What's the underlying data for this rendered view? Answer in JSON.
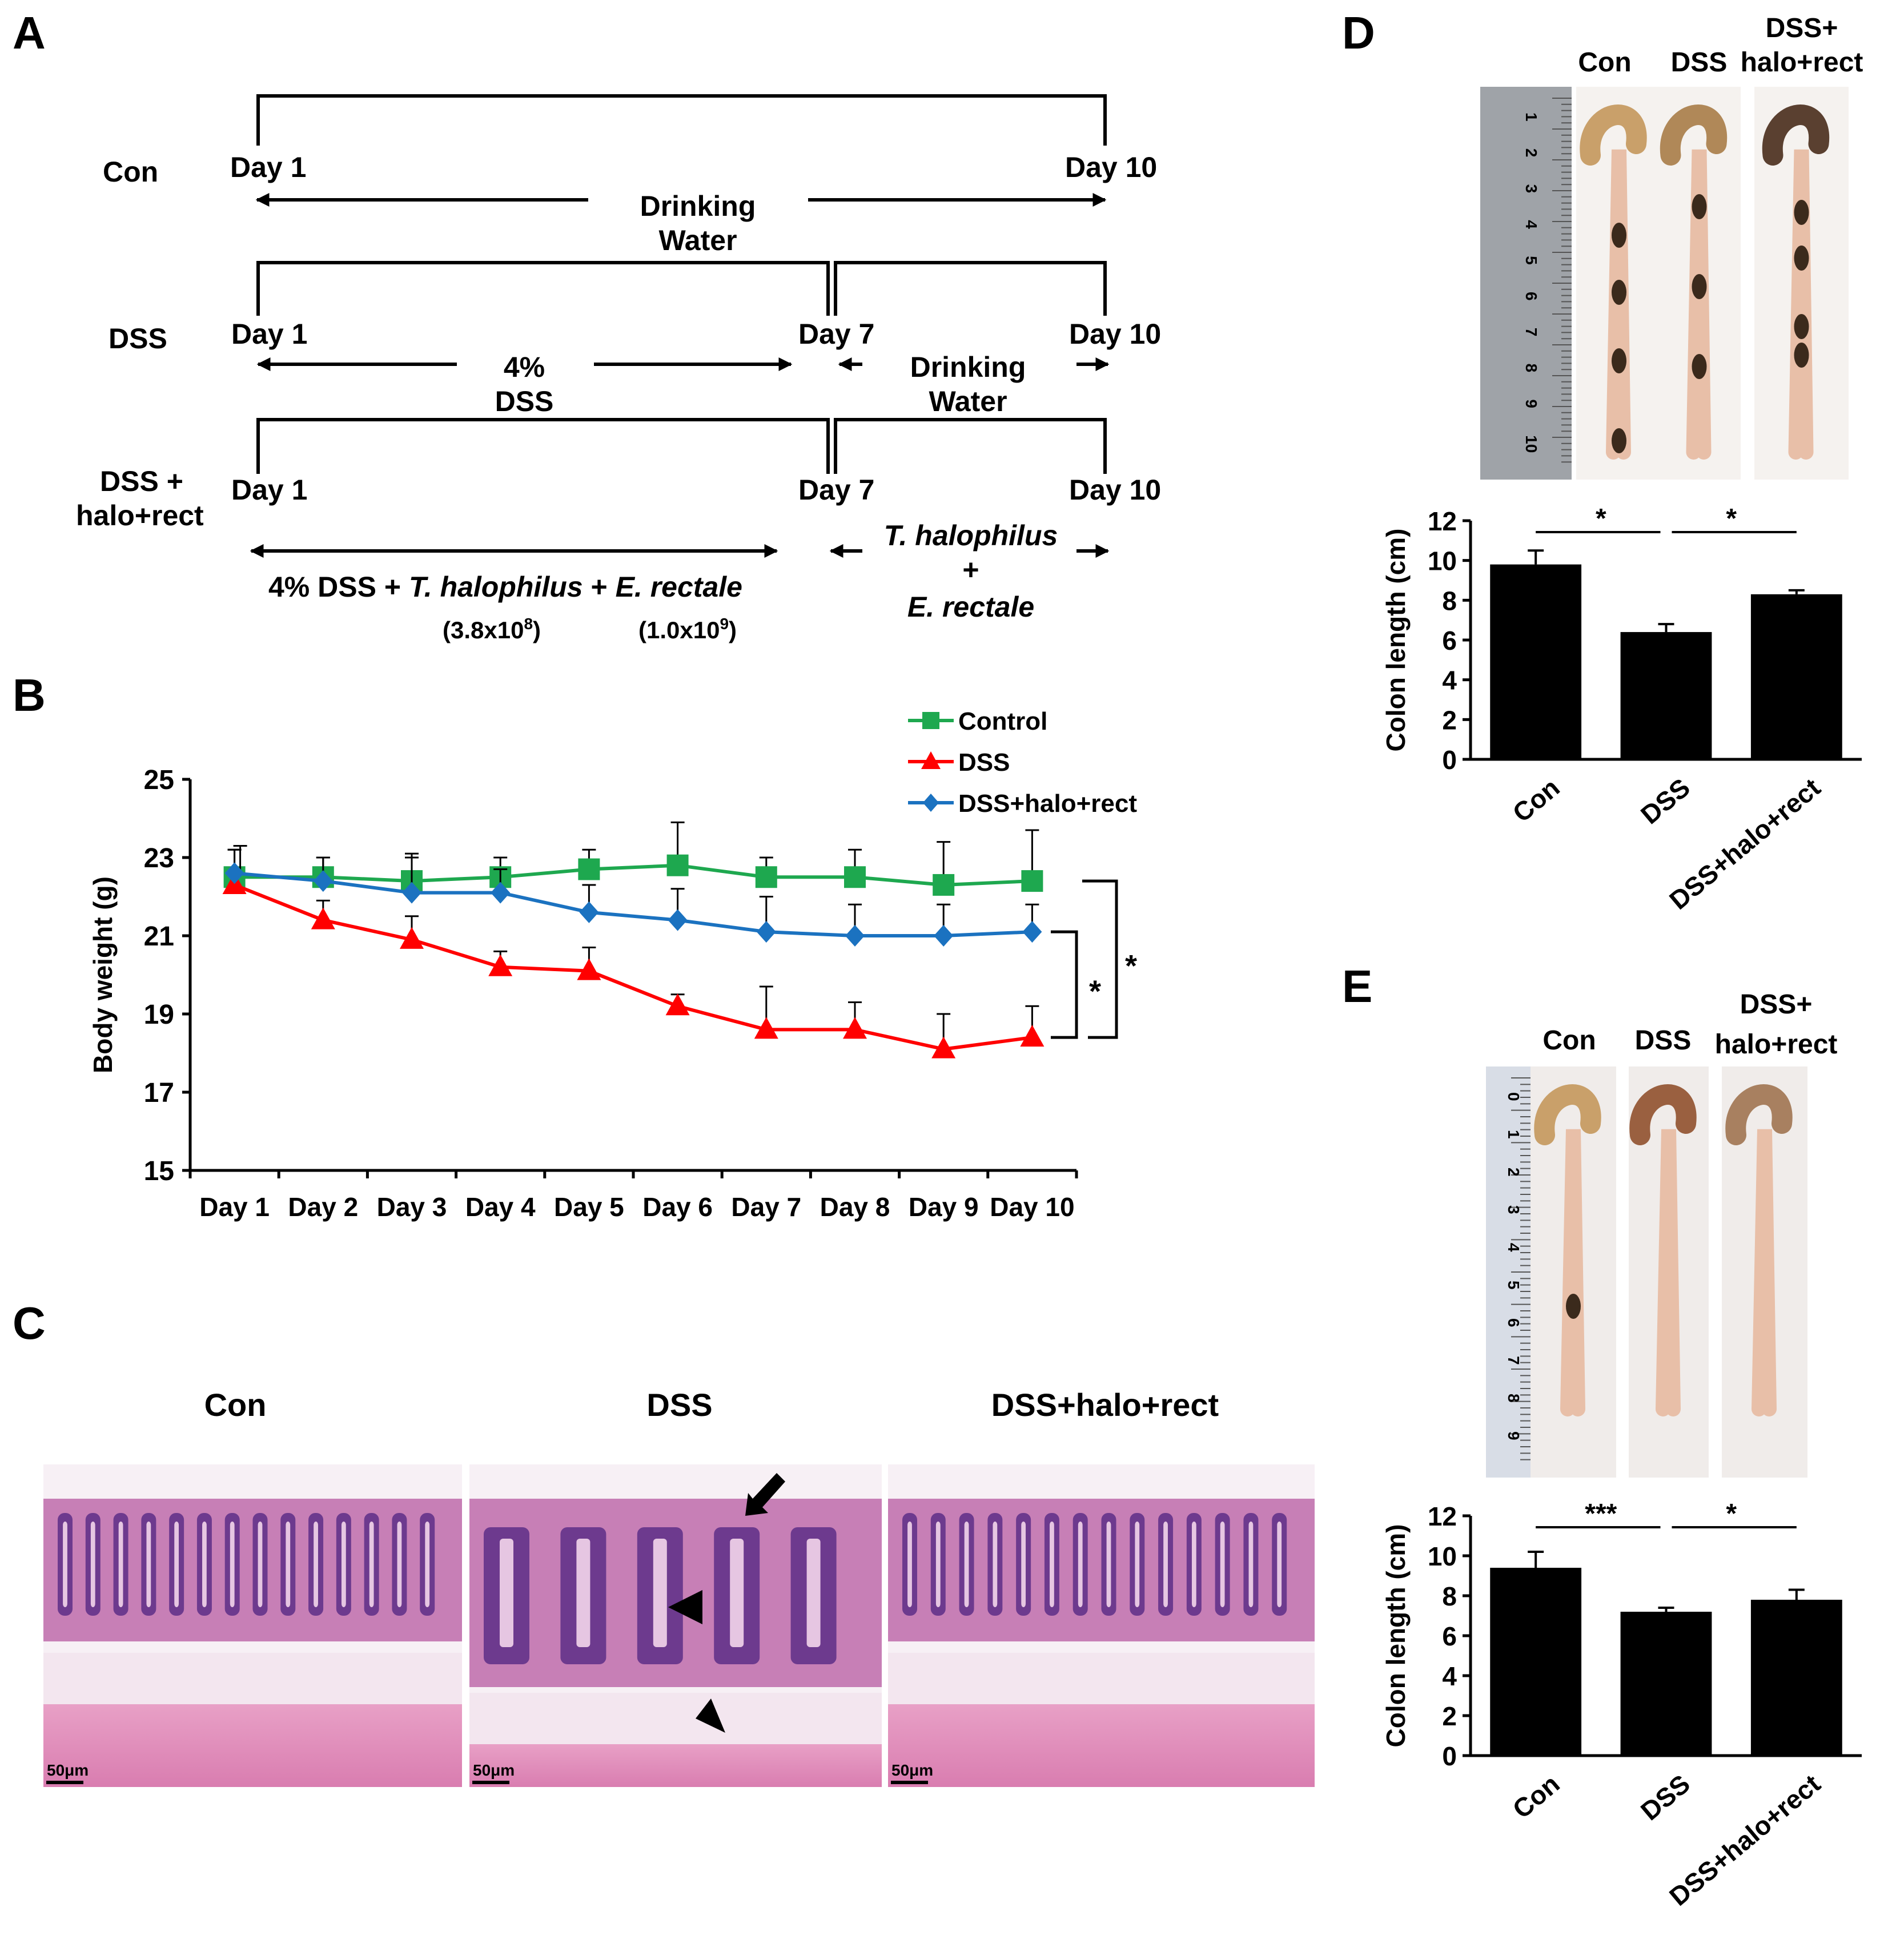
{
  "panel_labels": {
    "a": "A",
    "b": "B",
    "c": "C",
    "d": "D",
    "e": "E"
  },
  "schema": {
    "rows": [
      {
        "label": [
          "Con"
        ],
        "starts": [
          "Day 1"
        ],
        "ends": [
          "Day 10"
        ],
        "treatment": [
          "Drinking",
          "Water"
        ]
      },
      {
        "label": [
          "DSS"
        ],
        "starts": [
          "Day 1",
          "Day 7"
        ],
        "ends": [
          "Day 7",
          "Day 10"
        ],
        "treatment1": [
          "4%",
          "DSS"
        ],
        "treatment2": [
          "Drinking",
          "Water"
        ]
      },
      {
        "label": [
          "DSS +",
          "halo+rect"
        ],
        "starts": [
          "Day 1",
          "Day 7"
        ],
        "ends": [
          "Day 7",
          "Day 10"
        ]
      }
    ],
    "phase1": {
      "prefix": "4% DSS + ",
      "organism1": "T. halophilus",
      "plus": " + ",
      "organism2": "E. rectale",
      "dose1_base": "(3.8x10",
      "dose1_exp": "8",
      "dose1_close": ")",
      "dose2_base": "(1.0x10",
      "dose2_exp": "9",
      "dose2_close": ")"
    },
    "phase2": {
      "organism1": "T. halophilus",
      "plus": "+",
      "organism2": "E. rectale"
    }
  },
  "chart_data": [
    {
      "panel": "B",
      "type": "line",
      "xlabel": "",
      "ylabel": "Body weight (g)",
      "ylim": [
        15,
        25
      ],
      "yticks": [
        15,
        17,
        19,
        21,
        23,
        25
      ],
      "categories": [
        "Day 1",
        "Day 2",
        "Day 3",
        "Day 4",
        "Day 5",
        "Day 6",
        "Day 7",
        "Day 8",
        "Day 9",
        "Day 10"
      ],
      "legend_position": "top-right",
      "series": [
        {
          "name": "Control",
          "color": "#1ea84f",
          "marker": "square",
          "values": [
            22.5,
            22.5,
            22.4,
            22.5,
            22.7,
            22.8,
            22.5,
            22.5,
            22.3,
            22.4
          ],
          "error": [
            0.7,
            0.5,
            0.7,
            0.5,
            0.5,
            1.1,
            0.5,
            0.7,
            1.1,
            1.3
          ]
        },
        {
          "name": "DSS",
          "color": "#ff0000",
          "marker": "triangle",
          "values": [
            22.3,
            21.4,
            20.9,
            20.2,
            20.1,
            19.2,
            18.6,
            18.6,
            18.1,
            18.4
          ],
          "error": [
            0.9,
            0.5,
            0.6,
            0.4,
            0.6,
            0.3,
            1.1,
            0.7,
            0.9,
            0.8
          ]
        },
        {
          "name": "DSS+halo+rect",
          "color": "#1b72c0",
          "marker": "diamond",
          "values": [
            22.6,
            22.4,
            22.1,
            22.1,
            21.6,
            21.4,
            21.1,
            21.0,
            21.0,
            21.1
          ],
          "error": [
            0.7,
            0.6,
            0.9,
            0.6,
            0.7,
            0.8,
            0.9,
            0.8,
            0.8,
            0.7
          ]
        }
      ],
      "significance": [
        "*",
        "*"
      ]
    },
    {
      "panel": "D",
      "type": "bar",
      "ylabel": "Colon length (cm)",
      "ylim": [
        0,
        12
      ],
      "yticks": [
        0,
        2,
        4,
        6,
        8,
        10,
        12
      ],
      "categories": [
        "Con",
        "DSS",
        "DSS+halo+rect"
      ],
      "values": [
        9.8,
        6.4,
        8.3
      ],
      "error": [
        0.7,
        0.4,
        0.2
      ],
      "significance": [
        "*",
        "*"
      ]
    },
    {
      "panel": "E",
      "type": "bar",
      "ylabel": "Colon length (cm)",
      "ylim": [
        0,
        12
      ],
      "yticks": [
        0,
        2,
        4,
        6,
        8,
        10,
        12
      ],
      "categories": [
        "Con",
        "DSS",
        "DSS+halo+rect"
      ],
      "values": [
        9.4,
        7.2,
        7.8
      ],
      "error": [
        0.8,
        0.2,
        0.5
      ],
      "significance": [
        "***",
        "*"
      ]
    }
  ],
  "histology": {
    "titles": [
      "Con",
      "DSS",
      "DSS+halo+rect"
    ],
    "scale_bar": "50μm"
  },
  "photos_d": {
    "titles": [
      "Con",
      "DSS",
      "DSS+\nhalo+rect"
    ],
    "ruler_digits": [
      "1",
      "2",
      "3",
      "4",
      "5",
      "6",
      "7",
      "8",
      "9",
      "10"
    ]
  },
  "photos_e": {
    "titles": [
      "Con",
      "DSS",
      "DSS+\nhalo+rect"
    ],
    "ruler_digits": [
      "0",
      "1",
      "2",
      "3",
      "4",
      "5",
      "6",
      "7",
      "8",
      "9"
    ]
  },
  "colors": {
    "control": "#1ea84f",
    "dss": "#ff0000",
    "treat": "#1b72c0",
    "tissue_pink": "#e58fc0",
    "tissue_purple": "#7a3f96"
  }
}
